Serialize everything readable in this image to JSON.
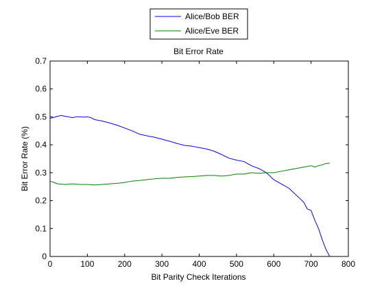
{
  "chart_data": {
    "type": "line",
    "title": "Bit Error Rate",
    "xlabel": "Bit Parity Check Iterations",
    "ylabel": "Bit Error Rate (%)",
    "xlim": [
      0,
      800
    ],
    "ylim": [
      0,
      0.7
    ],
    "xticks": [
      "0",
      "100",
      "200",
      "300",
      "400",
      "500",
      "600",
      "700",
      "800"
    ],
    "yticks": [
      "0",
      "0.1",
      "0.2",
      "0.3",
      "0.4",
      "0.5",
      "0.6",
      "0.7"
    ],
    "grid": false,
    "legend_position": "top-center-outside",
    "series": [
      {
        "name": "Alice/Bob BER",
        "color": "#0000ff",
        "x": [
          0,
          10,
          20,
          30,
          40,
          50,
          60,
          70,
          80,
          90,
          100,
          110,
          120,
          140,
          160,
          180,
          200,
          220,
          240,
          260,
          280,
          300,
          320,
          340,
          360,
          380,
          400,
          420,
          440,
          460,
          480,
          500,
          520,
          540,
          560,
          580,
          600,
          620,
          640,
          660,
          680,
          690,
          700,
          710,
          720,
          730,
          740,
          750
        ],
        "y": [
          0.495,
          0.498,
          0.502,
          0.505,
          0.502,
          0.5,
          0.497,
          0.5,
          0.5,
          0.499,
          0.5,
          0.497,
          0.49,
          0.485,
          0.478,
          0.47,
          0.46,
          0.45,
          0.438,
          0.432,
          0.427,
          0.42,
          0.413,
          0.405,
          0.398,
          0.395,
          0.39,
          0.385,
          0.377,
          0.365,
          0.352,
          0.345,
          0.34,
          0.325,
          0.315,
          0.3,
          0.275,
          0.26,
          0.245,
          0.22,
          0.195,
          0.17,
          0.165,
          0.13,
          0.1,
          0.06,
          0.025,
          0.0
        ]
      },
      {
        "name": "Alice/Eve BER",
        "color": "#008000",
        "x": [
          0,
          10,
          20,
          40,
          60,
          80,
          100,
          120,
          140,
          160,
          180,
          200,
          220,
          240,
          260,
          280,
          300,
          320,
          340,
          360,
          380,
          400,
          420,
          440,
          460,
          480,
          500,
          520,
          540,
          560,
          580,
          600,
          620,
          640,
          660,
          680,
          700,
          710,
          720,
          730,
          740,
          750
        ],
        "y": [
          0.27,
          0.265,
          0.26,
          0.258,
          0.26,
          0.258,
          0.258,
          0.256,
          0.258,
          0.26,
          0.262,
          0.265,
          0.27,
          0.272,
          0.275,
          0.278,
          0.28,
          0.28,
          0.283,
          0.285,
          0.286,
          0.288,
          0.29,
          0.29,
          0.288,
          0.29,
          0.295,
          0.295,
          0.3,
          0.298,
          0.3,
          0.3,
          0.305,
          0.31,
          0.315,
          0.32,
          0.325,
          0.32,
          0.325,
          0.328,
          0.333,
          0.334
        ]
      }
    ]
  }
}
